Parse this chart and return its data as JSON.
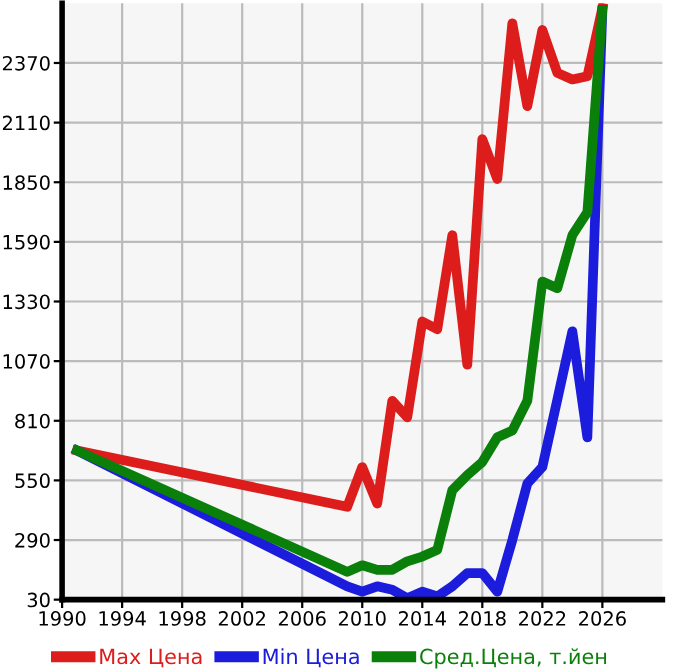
{
  "chart_data": {
    "type": "line",
    "x": [
      1991,
      2009,
      2010,
      2011,
      2012,
      2013,
      2014,
      2015,
      2016,
      2017,
      2018,
      2019,
      2020,
      2021,
      2022,
      2023,
      2024,
      2025,
      2026
    ],
    "series": [
      {
        "name": "Max Цена",
        "color": "#dd1c1c",
        "values": [
          680,
          435,
          608,
          449,
          897,
          825,
          1243,
          1209,
          1619,
          1055,
          2038,
          1864,
          2543,
          2182,
          2514,
          2327,
          2298,
          2312,
          2610
        ]
      },
      {
        "name": "Min Цена",
        "color": "#1c1cdd",
        "values": [
          680,
          88,
          65,
          88,
          73,
          36,
          65,
          44,
          88,
          146,
          146,
          65,
          290,
          536,
          608,
          903,
          1200,
          738,
          2600
        ]
      },
      {
        "name": "Сред.Цена, т.йен",
        "color": "#0a800a",
        "values": [
          680,
          151,
          180,
          160,
          160,
          197,
          218,
          247,
          507,
          573,
          630,
          738,
          767,
          897,
          1417,
          1388,
          1619,
          1720,
          2600
        ]
      }
    ],
    "xlim": [
      1990,
      2030
    ],
    "xticks": [
      1990,
      1994,
      1998,
      2002,
      2006,
      2010,
      2014,
      2018,
      2022,
      2026
    ],
    "ylim": [
      30,
      2630
    ],
    "yticks": [
      30,
      290,
      550,
      810,
      1070,
      1330,
      1590,
      1850,
      2110,
      2370
    ],
    "grid": true,
    "legend": "bottom",
    "marker": "none",
    "line_style": "solid"
  }
}
